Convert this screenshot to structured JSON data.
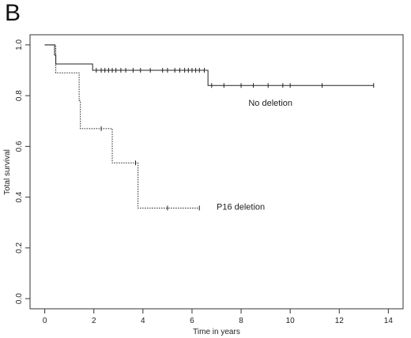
{
  "panel_label": "B",
  "chart_data": {
    "type": "line",
    "title": "",
    "xlabel": "Time in years",
    "ylabel": "Total survival",
    "xlim": [
      -0.6,
      14.6
    ],
    "ylim": [
      -0.04,
      1.04
    ],
    "x_ticks": [
      "0",
      "2",
      "4",
      "6",
      "8",
      "10",
      "12",
      "14"
    ],
    "x_tick_values": [
      0,
      2,
      4,
      6,
      8,
      10,
      12,
      14
    ],
    "y_ticks": [
      "0.0",
      "0.2",
      "0.4",
      "0.6",
      "0.8",
      "1.0"
    ],
    "y_tick_values": [
      0,
      0.2,
      0.4,
      0.6,
      0.8,
      1.0
    ],
    "grid": false,
    "series": [
      {
        "name": "No deletion",
        "line_style": "solid",
        "color": "#222222",
        "steps": [
          [
            0,
            1.0
          ],
          [
            0.4,
            0.96
          ],
          [
            0.45,
            0.925
          ],
          [
            1.9,
            0.925
          ],
          [
            1.95,
            0.9
          ],
          [
            6.6,
            0.9
          ],
          [
            6.65,
            0.84
          ],
          [
            13.4,
            0.84
          ]
        ],
        "censored": [
          2.1,
          2.3,
          2.45,
          2.6,
          2.75,
          2.9,
          3.1,
          3.3,
          3.6,
          3.9,
          4.3,
          4.8,
          5.0,
          5.3,
          5.5,
          5.7,
          5.85,
          6.0,
          6.15,
          6.3,
          6.5,
          6.8,
          7.3,
          8.0,
          8.5,
          9.1,
          9.7,
          10.0,
          11.3,
          13.4
        ],
        "label": "No deletion",
        "label_x": 8.3,
        "label_y": 0.76
      },
      {
        "name": "P16 deletion",
        "line_style": "dotted",
        "color": "#222222",
        "steps": [
          [
            0,
            1.0
          ],
          [
            0.45,
            0.89
          ],
          [
            1.35,
            0.89
          ],
          [
            1.4,
            0.78
          ],
          [
            1.45,
            0.67
          ],
          [
            2.7,
            0.67
          ],
          [
            2.75,
            0.535
          ],
          [
            3.75,
            0.535
          ],
          [
            3.8,
            0.357
          ],
          [
            6.3,
            0.357
          ]
        ],
        "censored": [
          2.3,
          3.7,
          5.0,
          6.3
        ],
        "label": "P16 deletion",
        "label_x": 7.0,
        "label_y": 0.35
      }
    ]
  }
}
